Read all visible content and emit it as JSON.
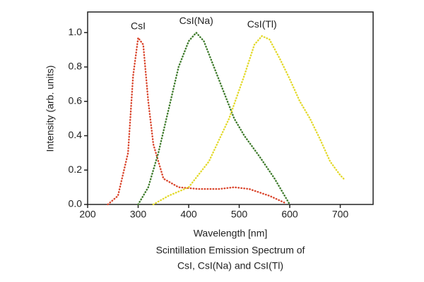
{
  "chart_data": {
    "type": "line",
    "y_label": "Intensity (arb. units)",
    "x_label": "Wavelength [nm]",
    "caption_lines": [
      "Scintillation Emission Spectrum of",
      "CsI, CsI(Na) and CsI(Tl)"
    ],
    "xlim": [
      200,
      765
    ],
    "ylim": [
      0,
      1.12
    ],
    "xticks": [
      200,
      300,
      400,
      500,
      600,
      700
    ],
    "yticks": [
      {
        "value": 0,
        "label": "0.0"
      },
      0.2,
      0.4,
      0.6,
      0.8,
      {
        "value": 1,
        "label": "1.0"
      }
    ],
    "grid": false,
    "series": [
      {
        "name": "CsI",
        "color": "#d9442b",
        "x": [
          240,
          260,
          280,
          290,
          300,
          310,
          320,
          330,
          350,
          380,
          420,
          460,
          490,
          520,
          560,
          590
        ],
        "values": [
          0,
          0.05,
          0.3,
          0.75,
          0.97,
          0.93,
          0.6,
          0.35,
          0.15,
          0.1,
          0.09,
          0.09,
          0.1,
          0.09,
          0.05,
          0.01
        ]
      },
      {
        "name": "CsI(Na)",
        "color": "#3d7a2a",
        "x": [
          300,
          320,
          340,
          360,
          380,
          400,
          415,
          430,
          450,
          470,
          490,
          510,
          540,
          570,
          600
        ],
        "values": [
          0,
          0.1,
          0.3,
          0.55,
          0.8,
          0.95,
          1.0,
          0.95,
          0.8,
          0.65,
          0.5,
          0.4,
          0.28,
          0.15,
          0
        ]
      },
      {
        "name": "CsI(Tl)",
        "color": "#e3d92a",
        "x": [
          330,
          360,
          400,
          440,
          480,
          510,
          530,
          545,
          560,
          580,
          600,
          620,
          640,
          660,
          680,
          700,
          710
        ],
        "values": [
          0,
          0.05,
          0.1,
          0.25,
          0.5,
          0.75,
          0.93,
          0.98,
          0.96,
          0.85,
          0.73,
          0.6,
          0.5,
          0.38,
          0.25,
          0.17,
          0.14
        ]
      }
    ]
  }
}
